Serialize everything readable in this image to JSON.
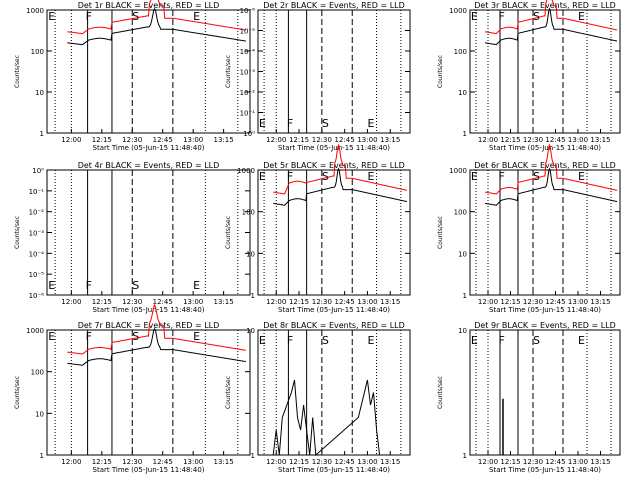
{
  "figure": {
    "background": "#ffffff"
  },
  "colors": {
    "events": "#000000",
    "lld": "#ff0000",
    "axes": "#000000"
  },
  "chart_data": [
    {
      "type": "line",
      "title": "Det 1r BLACK = Events, RED = LLD",
      "xlabel": "Start Time (05-Jun-15 11:48:40)",
      "ylabel": "Counts/sec",
      "yscale": "log",
      "ylim": [
        1,
        1000
      ],
      "yticklabels": [
        "1",
        "10",
        "100",
        "1000"
      ],
      "yticks": [
        1,
        10,
        100,
        1000
      ],
      "xlim": [
        "11:48",
        "13:28"
      ],
      "xticklabels": [
        "12:00",
        "12:15",
        "12:30",
        "12:45",
        "13:00",
        "13:15"
      ],
      "markers": [
        "E",
        "F",
        "S",
        "E"
      ],
      "profile": "A",
      "series": [
        {
          "name": "Events",
          "color": "#000000"
        },
        {
          "name": "LLD",
          "color": "#ff0000"
        }
      ]
    },
    {
      "type": "line",
      "title": "Det 2r BLACK = Events, RED = LLD",
      "xlabel": "Start Time (05-Jun-15 11:48:40)",
      "ylabel": "Counts/sec",
      "yscale": "log",
      "ylim": [
        1,
        1e-06
      ],
      "yticklabels": [
        "10⁰",
        "10⁻¹",
        "10⁻²",
        "10⁻³",
        "10⁻⁴",
        "10⁻⁵",
        "10⁻⁶"
      ],
      "yticks": [
        1,
        0.1,
        0.01,
        0.001,
        0.0001,
        1e-05,
        1e-06
      ],
      "xlim": [
        "11:48",
        "13:28"
      ],
      "xticklabels": [
        "12:00",
        "12:15",
        "12:30",
        "12:45",
        "13:00",
        "13:15"
      ],
      "markers": [
        "E",
        "F",
        "S",
        "E"
      ],
      "profile": "none",
      "series": []
    },
    {
      "type": "line",
      "title": "Det 3r BLACK = Events, RED = LLD",
      "xlabel": "Start Time (05-Jun-15 11:48:40)",
      "ylabel": "Counts/sec",
      "yscale": "log",
      "ylim": [
        1,
        1000
      ],
      "yticklabels": [
        "1",
        "10",
        "100",
        "1000"
      ],
      "yticks": [
        1,
        10,
        100,
        1000
      ],
      "xlim": [
        "11:48",
        "13:28"
      ],
      "xticklabels": [
        "12:00",
        "12:15",
        "12:30",
        "12:45",
        "13:00",
        "13:15"
      ],
      "markers": [
        "E",
        "F",
        "S",
        "E"
      ],
      "profile": "A",
      "series": [
        {
          "name": "Events",
          "color": "#000000"
        },
        {
          "name": "LLD",
          "color": "#ff0000"
        }
      ]
    },
    {
      "type": "line",
      "title": "Det 4r BLACK = Events, RED = LLD",
      "xlabel": "Start Time (05-Jun-15 11:48:40)",
      "ylabel": "Counts/sec",
      "yscale": "log",
      "ylim": [
        1e-06,
        1
      ],
      "yticklabels": [
        "10⁻⁶",
        "10⁻⁵",
        "10⁻⁴",
        "10⁻³",
        "10⁻²",
        "10⁻¹",
        "10⁰"
      ],
      "yticks": [
        1e-06,
        1e-05,
        0.0001,
        0.001,
        0.01,
        0.1,
        1
      ],
      "xlim": [
        "11:48",
        "13:28"
      ],
      "xticklabels": [
        "12:00",
        "12:15",
        "12:30",
        "12:45",
        "13:00",
        "13:15"
      ],
      "markers": [
        "E",
        "F",
        "S",
        "E"
      ],
      "profile": "none",
      "series": []
    },
    {
      "type": "line",
      "title": "Det 5r BLACK = Events, RED = LLD",
      "xlabel": "Start Time (05-Jun-15 11:48:40)",
      "ylabel": "Counts/sec",
      "yscale": "log",
      "ylim": [
        1,
        1000
      ],
      "yticklabels": [
        "1",
        "10",
        "100",
        "1000"
      ],
      "yticks": [
        1,
        10,
        100,
        1000
      ],
      "xlim": [
        "11:48",
        "13:28"
      ],
      "xticklabels": [
        "12:00",
        "12:15",
        "12:30",
        "12:45",
        "13:00",
        "13:15"
      ],
      "markers": [
        "E",
        "F",
        "S",
        "E"
      ],
      "profile": "B",
      "series": [
        {
          "name": "Events",
          "color": "#000000"
        },
        {
          "name": "LLD",
          "color": "#ff0000"
        }
      ]
    },
    {
      "type": "line",
      "title": "Det 6r BLACK = Events, RED = LLD",
      "xlabel": "Start Time (05-Jun-15 11:48:40)",
      "ylabel": "Counts/sec",
      "yscale": "log",
      "ylim": [
        1,
        1000
      ],
      "yticklabels": [
        "1",
        "10",
        "100",
        "1000"
      ],
      "yticks": [
        1,
        10,
        100,
        1000
      ],
      "xlim": [
        "11:48",
        "13:28"
      ],
      "xticklabels": [
        "12:00",
        "12:15",
        "12:30",
        "12:45",
        "13:00",
        "13:15"
      ],
      "markers": [
        "E",
        "F",
        "S",
        "E"
      ],
      "profile": "A",
      "series": [
        {
          "name": "Events",
          "color": "#000000"
        },
        {
          "name": "LLD",
          "color": "#ff0000"
        }
      ]
    },
    {
      "type": "line",
      "title": "Det 7r BLACK = Events, RED = LLD",
      "xlabel": "Start Time (05-Jun-15 11:48:40)",
      "ylabel": "Counts/sec",
      "yscale": "log",
      "ylim": [
        1,
        1000
      ],
      "yticklabels": [
        "1",
        "10",
        "100",
        "1000"
      ],
      "yticks": [
        1,
        10,
        100,
        1000
      ],
      "xlim": [
        "11:48",
        "13:28"
      ],
      "xticklabels": [
        "12:00",
        "12:15",
        "12:30",
        "12:45",
        "13:00",
        "13:15"
      ],
      "markers": [
        "E",
        "F",
        "S",
        "E"
      ],
      "profile": "A",
      "series": [
        {
          "name": "Events",
          "color": "#000000"
        },
        {
          "name": "LLD",
          "color": "#ff0000"
        }
      ]
    },
    {
      "type": "line",
      "title": "Det 8r BLACK = Events, RED = LLD",
      "xlabel": "Start Time (05-Jun-15 11:48:40)",
      "ylabel": "Counts/sec",
      "yscale": "log",
      "ylim": [
        1,
        10
      ],
      "yticklabels": [
        "1",
        "10"
      ],
      "yticks": [
        1,
        10
      ],
      "xlim": [
        "11:48",
        "13:28"
      ],
      "xticklabels": [
        "12:00",
        "12:15",
        "12:30",
        "12:45",
        "13:00",
        "13:15"
      ],
      "markers": [
        "E",
        "F",
        "S",
        "E"
      ],
      "profile": "C",
      "series": [
        {
          "name": "Events",
          "color": "#000000"
        }
      ]
    },
    {
      "type": "line",
      "title": "Det 9r BLACK = Events, RED = LLD",
      "xlabel": "Start Time (05-Jun-15 11:48:40)",
      "ylabel": "Counts/sec",
      "yscale": "log",
      "ylim": [
        1,
        10
      ],
      "yticklabels": [
        "1",
        "10"
      ],
      "yticks": [
        1,
        10
      ],
      "xlim": [
        "11:48",
        "13:28"
      ],
      "xticklabels": [
        "12:00",
        "12:15",
        "12:30",
        "12:45",
        "13:00",
        "13:15"
      ],
      "markers": [
        "E",
        "F",
        "S",
        "E"
      ],
      "profile": "D",
      "series": [
        {
          "name": "Events",
          "color": "#000000"
        }
      ]
    }
  ]
}
